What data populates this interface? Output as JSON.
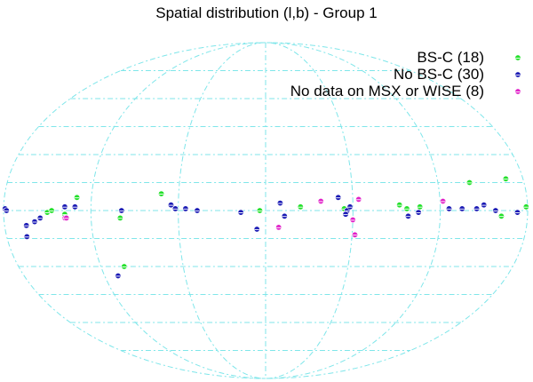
{
  "chart_data": {
    "type": "scatter",
    "projection": "aitoff-hammer-allsky",
    "title": "Spatial distribution (l,b) - Group 1",
    "xlabel": "",
    "ylabel": "",
    "grid": true,
    "legend_position": "top-right",
    "x_unit": "galactic longitude l (deg), increasing to the left, centre 0",
    "y_unit": "galactic latitude b (deg)",
    "series": [
      {
        "name": "BS-C (18)",
        "color": "#22e02a",
        "points": [
          {
            "l": 178,
            "b": 0
          },
          {
            "l": 150,
            "b": -1
          },
          {
            "l": 147,
            "b": 0
          },
          {
            "l": 138,
            "b": -2
          },
          {
            "l": 130,
            "b": 7
          },
          {
            "l": 103,
            "b": -30
          },
          {
            "l": 100,
            "b": -4
          },
          {
            "l": 72,
            "b": 9
          },
          {
            "l": 4,
            "b": 0
          },
          {
            "l": -24,
            "b": 2
          },
          {
            "l": -54,
            "b": 1
          },
          {
            "l": -92,
            "b": 3
          },
          {
            "l": -106,
            "b": 2
          },
          {
            "l": -142,
            "b": 15
          },
          {
            "l": -168,
            "b": 17
          },
          {
            "l": -162,
            "b": -3
          },
          {
            "l": -179,
            "b": 2
          },
          {
            "l": -97,
            "b": 1
          }
        ]
      },
      {
        "name": "No BS-C (30)",
        "color": "#1a1ab4",
        "points": [
          {
            "l": 179,
            "b": 1
          },
          {
            "l": 178,
            "b": 0
          },
          {
            "l": 165,
            "b": -8
          },
          {
            "l": 166,
            "b": -14
          },
          {
            "l": 159,
            "b": -6
          },
          {
            "l": 155,
            "b": -4
          },
          {
            "l": 138,
            "b": 2
          },
          {
            "l": 131,
            "b": 2
          },
          {
            "l": 110,
            "b": -35
          },
          {
            "l": 99,
            "b": 0
          },
          {
            "l": 65,
            "b": 3
          },
          {
            "l": 62,
            "b": 1
          },
          {
            "l": 55,
            "b": 1
          },
          {
            "l": 47,
            "b": 0
          },
          {
            "l": 17,
            "b": -1
          },
          {
            "l": 6,
            "b": -10
          },
          {
            "l": -10,
            "b": 4
          },
          {
            "l": -13,
            "b": -3
          },
          {
            "l": -50,
            "b": 7
          },
          {
            "l": -56,
            "b": 0
          },
          {
            "l": -55,
            "b": -2
          },
          {
            "l": -58,
            "b": 2
          },
          {
            "l": -98,
            "b": -3
          },
          {
            "l": -105,
            "b": -1
          },
          {
            "l": -126,
            "b": 1
          },
          {
            "l": -135,
            "b": 1
          },
          {
            "l": -145,
            "b": 1
          },
          {
            "l": -150,
            "b": 3
          },
          {
            "l": -158,
            "b": 0
          },
          {
            "l": -173,
            "b": -1
          }
        ]
      },
      {
        "name": "No data on MSX or WISE (8)",
        "color": "#e020c8",
        "points": [
          {
            "l": 138,
            "b": -4
          },
          {
            "l": -9,
            "b": -9
          },
          {
            "l": -38,
            "b": 5
          },
          {
            "l": -64,
            "b": 6
          },
          {
            "l": -60,
            "b": -5
          },
          {
            "l": -62,
            "b": -13
          },
          {
            "l": -122,
            "b": 5
          },
          {
            "l": 137,
            "b": -4
          }
        ]
      }
    ]
  }
}
